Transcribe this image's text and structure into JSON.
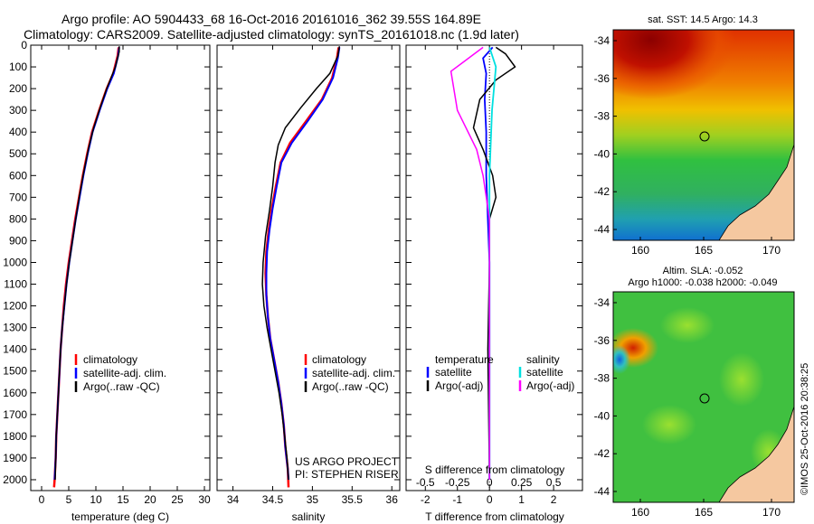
{
  "title_line1": "Argo profile: AO 5904433_68 16-Oct-2016 20161016_362 39.55S 164.89E",
  "title_line2": "Climatology: CARS2009. Satellite-adjusted climatology: synTS_20161018.nc (1.9d later)",
  "depth_axis": {
    "ticks": [
      0,
      100,
      200,
      300,
      400,
      500,
      600,
      700,
      800,
      900,
      1000,
      1100,
      1200,
      1300,
      1400,
      1500,
      1600,
      1700,
      1800,
      1900,
      2000
    ],
    "range": [
      0,
      2050
    ],
    "inverted": true
  },
  "temp_panel": {
    "xlabel": "temperature (deg C)",
    "xticks": [
      0,
      5,
      10,
      15,
      20,
      25,
      30
    ],
    "xlim": [
      -2,
      31
    ],
    "legend": [
      "climatology",
      "satellite-adj. clim.",
      "Argo(..raw -QC)"
    ]
  },
  "sal_panel": {
    "xlabel": "salinity",
    "xticks": [
      "34",
      "34.5",
      "35",
      "35.5",
      "36"
    ],
    "xlim": [
      33.8,
      36.1
    ],
    "legend": [
      "climatology",
      "satellite-adj. clim.",
      "Argo(..raw -QC)"
    ],
    "note1": "US ARGO PROJECT",
    "note2": "PI: STEPHEN RISER"
  },
  "diff_panel": {
    "xlabel": "T difference from climatology",
    "toplabel": "S difference from climatology",
    "xticks": [
      "-2",
      "-1",
      "0",
      "1",
      "2"
    ],
    "sticks": [
      "-0.5",
      "-0.25",
      "0",
      "0.25",
      "0.5"
    ],
    "xlim": [
      -2.6,
      2.9
    ],
    "legend_temp_head": "temperature",
    "legend_sal_head": "salinity",
    "legend_temp": [
      "satellite",
      "Argo(-adj)"
    ],
    "legend_sal": [
      "satellite",
      "Argo(-adj)"
    ]
  },
  "map_sst": {
    "title": "sat. SST: 14.5  Argo: 14.3",
    "yticks": [
      "-34",
      "-36",
      "-38",
      "-40",
      "-42",
      "-44"
    ],
    "xticks": [
      "160",
      "165",
      "170"
    ]
  },
  "map_sla": {
    "title1": "Altim. SLA: -0.052",
    "title2": "Argo h1000: -0.038 h2000: -0.049",
    "yticks": [
      "-34",
      "-36",
      "-38",
      "-40",
      "-42",
      "-44"
    ],
    "xticks": [
      "160",
      "165",
      "170"
    ]
  },
  "credit": "©IMOS 25-Oct-2016 20:38:25",
  "colors": {
    "climatology": "#ff0000",
    "satellite": "#0000ff",
    "argo": "#000000",
    "sal_satellite": "#00e0e0",
    "sal_argo": "#ff00ff",
    "land": "#f5c8a0"
  },
  "chart_data": [
    {
      "type": "line",
      "x_name": "temperature (deg C)",
      "y_name": "depth",
      "series": [
        {
          "name": "climatology",
          "points": [
            [
              14.2,
              10
            ],
            [
              14.0,
              50
            ],
            [
              13.2,
              130
            ],
            [
              12.0,
              200
            ],
            [
              10.6,
              300
            ],
            [
              9.3,
              400
            ],
            [
              8.4,
              500
            ],
            [
              7.6,
              600
            ],
            [
              6.9,
              700
            ],
            [
              6.2,
              800
            ],
            [
              5.6,
              900
            ],
            [
              5.0,
              1000
            ],
            [
              4.5,
              1100
            ],
            [
              4.1,
              1200
            ],
            [
              3.8,
              1300
            ],
            [
              3.5,
              1400
            ],
            [
              3.3,
              1500
            ],
            [
              3.1,
              1600
            ],
            [
              2.9,
              1700
            ],
            [
              2.7,
              1800
            ],
            [
              2.6,
              1900
            ],
            [
              2.4,
              2000
            ],
            [
              2.3,
              2035
            ]
          ]
        },
        {
          "name": "satellite-adj. clim.",
          "points": [
            [
              14.3,
              10
            ],
            [
              14.1,
              50
            ],
            [
              13.3,
              130
            ],
            [
              12.1,
              200
            ],
            [
              10.7,
              300
            ],
            [
              9.4,
              400
            ],
            [
              8.5,
              500
            ],
            [
              7.7,
              600
            ],
            [
              7.0,
              700
            ],
            [
              6.3,
              800
            ],
            [
              5.7,
              900
            ],
            [
              5.1,
              1000
            ],
            [
              4.6,
              1100
            ],
            [
              4.2,
              1200
            ],
            [
              3.8,
              1300
            ],
            [
              3.5,
              1400
            ],
            [
              3.3,
              1500
            ],
            [
              3.1,
              1600
            ],
            [
              2.9,
              1700
            ],
            [
              2.7,
              1800
            ],
            [
              2.6,
              1900
            ],
            [
              2.4,
              2000
            ]
          ]
        },
        {
          "name": "Argo(..raw -QC)",
          "points": [
            [
              14.3,
              5
            ],
            [
              14.3,
              30
            ],
            [
              13.6,
              100
            ],
            [
              12.8,
              150
            ],
            [
              12.0,
              200
            ],
            [
              10.9,
              280
            ],
            [
              9.6,
              380
            ],
            [
              8.7,
              470
            ],
            [
              7.8,
              580
            ],
            [
              7.0,
              690
            ],
            [
              6.3,
              800
            ],
            [
              5.7,
              900
            ],
            [
              5.1,
              1000
            ],
            [
              4.6,
              1100
            ],
            [
              4.2,
              1200
            ],
            [
              3.8,
              1300
            ],
            [
              3.5,
              1400
            ],
            [
              3.3,
              1500
            ],
            [
              3.1,
              1600
            ],
            [
              2.9,
              1700
            ],
            [
              2.7,
              1800
            ],
            [
              2.6,
              1900
            ],
            [
              2.5,
              2000
            ]
          ]
        }
      ]
    },
    {
      "type": "line",
      "x_name": "salinity",
      "y_name": "depth",
      "series": [
        {
          "name": "climatology",
          "points": [
            [
              35.33,
              10
            ],
            [
              35.31,
              60
            ],
            [
              35.25,
              150
            ],
            [
              35.12,
              250
            ],
            [
              34.92,
              350
            ],
            [
              34.72,
              450
            ],
            [
              34.6,
              540
            ],
            [
              34.54,
              650
            ],
            [
              34.49,
              750
            ],
            [
              34.45,
              850
            ],
            [
              34.42,
              950
            ],
            [
              34.41,
              1050
            ],
            [
              34.42,
              1150
            ],
            [
              34.44,
              1250
            ],
            [
              34.47,
              1350
            ],
            [
              34.52,
              1450
            ],
            [
              34.57,
              1550
            ],
            [
              34.61,
              1650
            ],
            [
              34.64,
              1750
            ],
            [
              34.66,
              1850
            ],
            [
              34.69,
              1950
            ],
            [
              34.7,
              2035
            ]
          ]
        },
        {
          "name": "satellite-adj. clim.",
          "points": [
            [
              35.34,
              10
            ],
            [
              35.32,
              60
            ],
            [
              35.26,
              150
            ],
            [
              35.13,
              250
            ],
            [
              34.94,
              350
            ],
            [
              34.74,
              450
            ],
            [
              34.61,
              540
            ],
            [
              34.55,
              650
            ],
            [
              34.5,
              750
            ],
            [
              34.46,
              850
            ],
            [
              34.43,
              950
            ],
            [
              34.42,
              1050
            ],
            [
              34.42,
              1150
            ],
            [
              34.44,
              1250
            ],
            [
              34.47,
              1350
            ],
            [
              34.52,
              1450
            ],
            [
              34.57,
              1550
            ],
            [
              34.61,
              1650
            ],
            [
              34.64,
              1750
            ],
            [
              34.66,
              1850
            ],
            [
              34.69,
              1950
            ],
            [
              34.7,
              2000
            ]
          ]
        },
        {
          "name": "Argo(..raw -QC)",
          "points": [
            [
              35.34,
              5
            ],
            [
              35.32,
              50
            ],
            [
              35.22,
              130
            ],
            [
              35.05,
              200
            ],
            [
              34.85,
              290
            ],
            [
              34.66,
              380
            ],
            [
              34.57,
              460
            ],
            [
              34.53,
              540
            ],
            [
              34.5,
              650
            ],
            [
              34.46,
              760
            ],
            [
              34.41,
              880
            ],
            [
              34.38,
              1000
            ],
            [
              34.37,
              1100
            ],
            [
              34.39,
              1200
            ],
            [
              34.43,
              1300
            ],
            [
              34.48,
              1400
            ],
            [
              34.53,
              1500
            ],
            [
              34.58,
              1600
            ],
            [
              34.62,
              1700
            ],
            [
              34.65,
              1800
            ],
            [
              34.68,
              1900
            ],
            [
              34.7,
              2000
            ]
          ]
        }
      ]
    },
    {
      "type": "line",
      "x_name": "T difference from climatology",
      "y_name": "depth",
      "series": [
        {
          "name": "temperature satellite",
          "points": [
            [
              0.1,
              10
            ],
            [
              -0.2,
              60
            ],
            [
              -0.1,
              130
            ],
            [
              -0.15,
              250
            ],
            [
              -0.1,
              400
            ],
            [
              -0.1,
              600
            ],
            [
              -0.05,
              800
            ],
            [
              0.0,
              1000
            ],
            [
              0.0,
              1500
            ],
            [
              0.0,
              2000
            ]
          ]
        },
        {
          "name": "temperature Argo(-adj)",
          "points": [
            [
              0.2,
              10
            ],
            [
              0.5,
              40
            ],
            [
              0.8,
              100
            ],
            [
              0.2,
              160
            ],
            [
              -0.3,
              250
            ],
            [
              -0.5,
              380
            ],
            [
              -0.2,
              480
            ],
            [
              0.1,
              600
            ],
            [
              0.2,
              700
            ],
            [
              0.0,
              800
            ],
            [
              0.0,
              1000
            ],
            [
              -0.05,
              1400
            ],
            [
              0.0,
              2000
            ]
          ]
        },
        {
          "name": "salinity satellite",
          "points": [
            [
              0.0,
              10
            ],
            [
              0.05,
              100
            ],
            [
              0.02,
              300
            ],
            [
              0.0,
              600
            ],
            [
              0.0,
              1000
            ],
            [
              0.0,
              2000
            ]
          ]
        },
        {
          "name": "salinity Argo(-adj)",
          "points": [
            [
              -0.05,
              10
            ],
            [
              -0.3,
              120
            ],
            [
              -0.25,
              300
            ],
            [
              -0.1,
              480
            ],
            [
              -0.05,
              600
            ],
            [
              0.0,
              800
            ],
            [
              0.0,
              1200
            ],
            [
              0.0,
              2000
            ]
          ]
        }
      ]
    }
  ]
}
